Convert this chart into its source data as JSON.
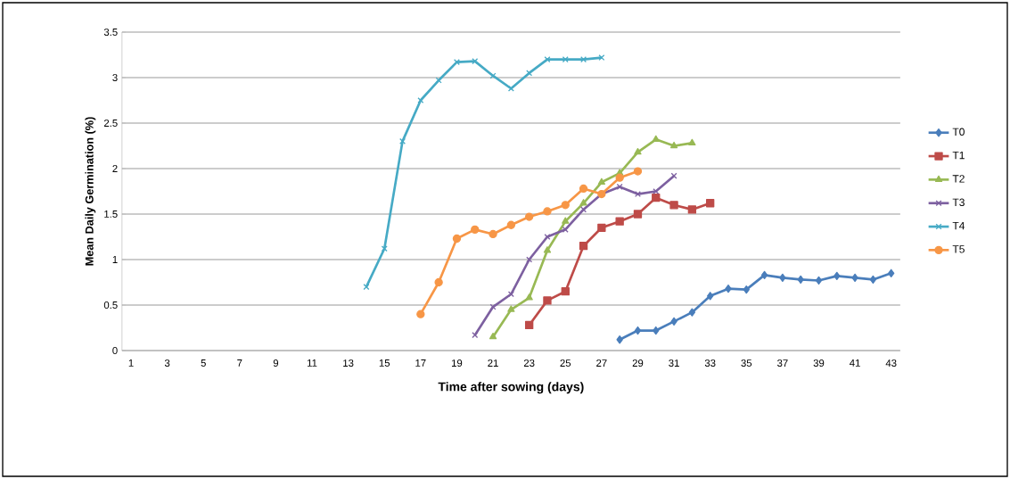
{
  "chart_data": {
    "type": "line",
    "xlabel": "Time after sowing (days)",
    "ylabel": "Mean Daily Germination (%)",
    "categories": [
      "1",
      null,
      "3",
      null,
      "5",
      null,
      "7",
      null,
      "9",
      null,
      "11",
      null,
      "13",
      null,
      "15",
      null,
      "17",
      null,
      "19",
      null,
      "21",
      null,
      "23",
      null,
      "25",
      null,
      "27",
      null,
      "29",
      null,
      "31",
      null,
      "33",
      null,
      "35",
      null,
      "37",
      null,
      "39",
      null,
      "41",
      null,
      "43"
    ],
    "ylim": [
      0,
      3.5
    ],
    "yticks": [
      0,
      0.5,
      1,
      1.5,
      2,
      2.5,
      3,
      3.5
    ],
    "grid": "y",
    "legend": "right",
    "series": [
      {
        "name": "T0",
        "color": "#4a7ebb",
        "marker": "diamond",
        "values": [
          null,
          null,
          null,
          null,
          null,
          null,
          null,
          null,
          null,
          null,
          null,
          null,
          null,
          null,
          null,
          null,
          null,
          null,
          null,
          null,
          null,
          null,
          null,
          null,
          null,
          null,
          null,
          0.12,
          0.22,
          0.22,
          0.32,
          0.42,
          0.6,
          0.68,
          0.67,
          0.83,
          0.8,
          0.78,
          0.77,
          0.82,
          0.8,
          0.78,
          0.85
        ]
      },
      {
        "name": "T1",
        "color": "#be4b48",
        "marker": "square",
        "values": [
          null,
          null,
          null,
          null,
          null,
          null,
          null,
          null,
          null,
          null,
          null,
          null,
          null,
          null,
          null,
          null,
          null,
          null,
          null,
          null,
          null,
          null,
          0.28,
          0.55,
          0.65,
          1.15,
          1.35,
          1.42,
          1.5,
          1.68,
          1.6,
          1.55,
          1.62,
          null,
          null,
          null,
          null,
          null,
          null,
          null,
          null,
          null,
          null
        ]
      },
      {
        "name": "T2",
        "color": "#98b954",
        "marker": "triangle",
        "values": [
          null,
          null,
          null,
          null,
          null,
          null,
          null,
          null,
          null,
          null,
          null,
          null,
          null,
          null,
          null,
          null,
          null,
          null,
          null,
          null,
          0.15,
          0.45,
          0.58,
          1.1,
          1.42,
          1.62,
          1.85,
          1.95,
          2.18,
          2.32,
          2.25,
          2.28,
          null,
          null,
          null,
          null,
          null,
          null,
          null,
          null,
          null,
          null,
          null
        ]
      },
      {
        "name": "T3",
        "color": "#7d60a0",
        "marker": "cross",
        "values": [
          null,
          null,
          null,
          null,
          null,
          null,
          null,
          null,
          null,
          null,
          null,
          null,
          null,
          null,
          null,
          null,
          null,
          null,
          null,
          0.17,
          0.48,
          0.62,
          1.0,
          1.25,
          1.33,
          1.55,
          1.72,
          1.8,
          1.72,
          1.75,
          1.92,
          null,
          null,
          null,
          null,
          null,
          null,
          null,
          null,
          null,
          null,
          null,
          null
        ]
      },
      {
        "name": "T4",
        "color": "#46aac5",
        "marker": "cross",
        "values": [
          null,
          null,
          null,
          null,
          null,
          null,
          null,
          null,
          null,
          null,
          null,
          null,
          null,
          0.7,
          1.12,
          2.3,
          2.75,
          2.97,
          3.17,
          3.18,
          3.02,
          2.88,
          3.05,
          3.2,
          3.2,
          3.2,
          3.22,
          null,
          null,
          null,
          null,
          null,
          null,
          null,
          null,
          null,
          null,
          null,
          null,
          null,
          null,
          null,
          null
        ]
      },
      {
        "name": "T5",
        "color": "#f79646",
        "marker": "circle",
        "values": [
          null,
          null,
          null,
          null,
          null,
          null,
          null,
          null,
          null,
          null,
          null,
          null,
          null,
          null,
          null,
          null,
          0.4,
          0.75,
          1.23,
          1.33,
          1.28,
          1.38,
          1.47,
          1.53,
          1.6,
          1.78,
          1.72,
          1.9,
          1.97,
          null,
          null,
          null,
          null,
          null,
          null,
          null,
          null,
          null,
          null,
          null,
          null,
          null,
          null
        ]
      }
    ]
  }
}
